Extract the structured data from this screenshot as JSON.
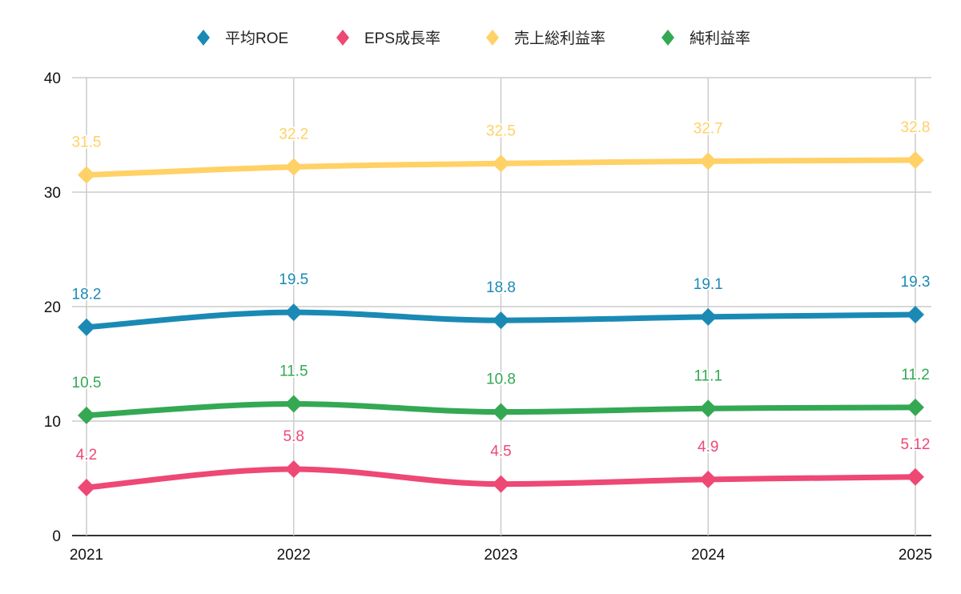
{
  "chart_data": {
    "type": "line",
    "title": "",
    "xlabel": "",
    "ylabel": "",
    "categories": [
      "2021",
      "2022",
      "2023",
      "2024",
      "2025"
    ],
    "ylim": [
      0,
      40
    ],
    "yticks": [
      "0",
      "10",
      "20",
      "30",
      "40"
    ],
    "grid": true,
    "smooth": true,
    "legend_position": "top-center",
    "series": [
      {
        "name": "平均ROE",
        "color": "#1a8ab5",
        "values": [
          18.2,
          19.5,
          18.8,
          19.1,
          19.3
        ],
        "labels": [
          "18.2",
          "19.5",
          "18.8",
          "19.1",
          "19.3"
        ]
      },
      {
        "name": "EPS成長率",
        "color": "#ee4874",
        "values": [
          4.2,
          5.8,
          4.5,
          4.9,
          5.12
        ],
        "labels": [
          "4.2",
          "5.8",
          "4.5",
          "4.9",
          "5.12"
        ]
      },
      {
        "name": "売上総利益率",
        "color": "#ffd166",
        "values": [
          31.5,
          32.2,
          32.5,
          32.7,
          32.8
        ],
        "labels": [
          "31.5",
          "32.2",
          "32.5",
          "32.7",
          "32.8"
        ]
      },
      {
        "name": "純利益率",
        "color": "#34a853",
        "values": [
          10.5,
          11.5,
          10.8,
          11.1,
          11.2
        ],
        "labels": [
          "10.5",
          "11.5",
          "10.8",
          "11.1",
          "11.2"
        ]
      }
    ]
  }
}
